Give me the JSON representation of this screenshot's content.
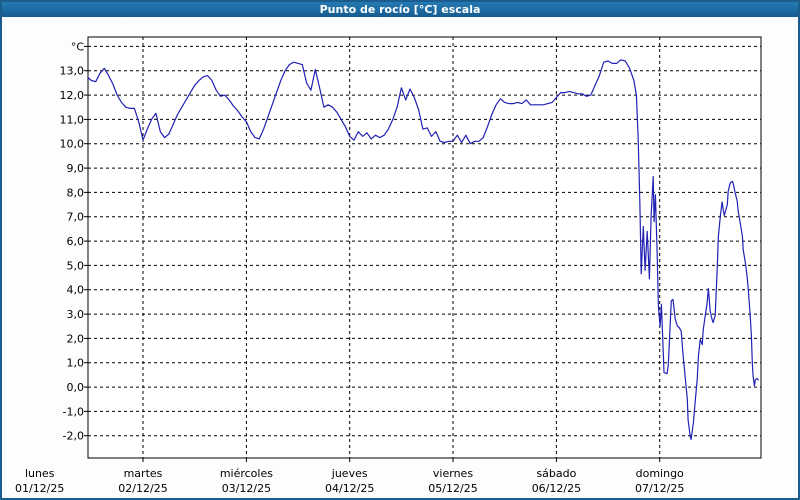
{
  "window": {
    "title": "Punto de rocío [°C] escala"
  },
  "colors": {
    "titlebar_blue": "#1d6ba4",
    "frame_blue": "#1b5c8e",
    "page_bg": "#fbfdfe",
    "plot_bg": "#ffffff",
    "grid_black": "#000000",
    "series_blue": "#2121b5",
    "title_text": "#ffffff",
    "axis_text": "#000000"
  },
  "chart_data": {
    "type": "line",
    "title": "Punto de rocío [°C] escala",
    "x_unit": "hours since lunes 01/12/25 00:00",
    "y_unit": "°C",
    "y_unit_label": "°C",
    "grid": true,
    "legend": "none",
    "ylim_visible": [
      -2.9,
      14.4
    ],
    "y_gridline_values": [
      14,
      13,
      12,
      11,
      10,
      9,
      8,
      7,
      6,
      5,
      4,
      3,
      2,
      1,
      0,
      -1,
      -2
    ],
    "y_ticks": [
      {
        "value": 13,
        "label": "13,0"
      },
      {
        "value": 12,
        "label": "12,0"
      },
      {
        "value": 11,
        "label": "11,0"
      },
      {
        "value": 10,
        "label": "10,0"
      },
      {
        "value": 9,
        "label": "9,0"
      },
      {
        "value": 8,
        "label": "8,0"
      },
      {
        "value": 7,
        "label": "7,0"
      },
      {
        "value": 6,
        "label": "6,0"
      },
      {
        "value": 5,
        "label": "5,0"
      },
      {
        "value": 4,
        "label": "4,0"
      },
      {
        "value": 3,
        "label": "3,0"
      },
      {
        "value": 2,
        "label": "2,0"
      },
      {
        "value": 1,
        "label": "1,0"
      },
      {
        "value": 0,
        "label": "0,0"
      },
      {
        "value": -1,
        "label": "-1,0"
      },
      {
        "value": -2,
        "label": "-2,0"
      }
    ],
    "x_gridline_days": [
      1,
      2,
      3,
      4,
      5,
      6
    ],
    "x_days": [
      {
        "name": "lunes",
        "date": "01/12/25"
      },
      {
        "name": "martes",
        "date": "02/12/25"
      },
      {
        "name": "miércoles",
        "date": "03/12/25"
      },
      {
        "name": "jueves",
        "date": "04/12/25"
      },
      {
        "name": "viernes",
        "date": "05/12/25"
      },
      {
        "name": "sábado",
        "date": "06/12/25"
      },
      {
        "name": "domingo",
        "date": "07/12/25"
      }
    ],
    "series": [
      {
        "name": "Punto de rocío",
        "color": "#2121b5",
        "points": [
          [
            11,
            12.75
          ],
          [
            12,
            12.6
          ],
          [
            13,
            12.55
          ],
          [
            14,
            12.9
          ],
          [
            15,
            13.1
          ],
          [
            16,
            12.8
          ],
          [
            17,
            12.45
          ],
          [
            18,
            12.0
          ],
          [
            19,
            11.7
          ],
          [
            20,
            11.5
          ],
          [
            21,
            11.45
          ],
          [
            22,
            11.45
          ],
          [
            23,
            10.9
          ],
          [
            24,
            10.15
          ],
          [
            25,
            10.6
          ],
          [
            26,
            11.0
          ],
          [
            27,
            11.25
          ],
          [
            28,
            10.5
          ],
          [
            29,
            10.25
          ],
          [
            30,
            10.4
          ],
          [
            31,
            10.8
          ],
          [
            32,
            11.2
          ],
          [
            33,
            11.5
          ],
          [
            34,
            11.8
          ],
          [
            35,
            12.1
          ],
          [
            36,
            12.4
          ],
          [
            37,
            12.6
          ],
          [
            38,
            12.75
          ],
          [
            39,
            12.8
          ],
          [
            40,
            12.6
          ],
          [
            41,
            12.2
          ],
          [
            42,
            11.95
          ],
          [
            43,
            12.0
          ],
          [
            44,
            11.8
          ],
          [
            45,
            11.55
          ],
          [
            46,
            11.35
          ],
          [
            47,
            11.1
          ],
          [
            48,
            10.9
          ],
          [
            49,
            10.5
          ],
          [
            50,
            10.25
          ],
          [
            51,
            10.2
          ],
          [
            52,
            10.6
          ],
          [
            53,
            11.1
          ],
          [
            54,
            11.6
          ],
          [
            55,
            12.1
          ],
          [
            56,
            12.6
          ],
          [
            57,
            13.0
          ],
          [
            58,
            13.25
          ],
          [
            59,
            13.35
          ],
          [
            60,
            13.3
          ],
          [
            61,
            13.25
          ],
          [
            62,
            12.5
          ],
          [
            63,
            12.2
          ],
          [
            64,
            13.05
          ],
          [
            65,
            12.3
          ],
          [
            66,
            11.5
          ],
          [
            67,
            11.6
          ],
          [
            68,
            11.5
          ],
          [
            69,
            11.3
          ],
          [
            70,
            11.0
          ],
          [
            71,
            10.7
          ],
          [
            72,
            10.3
          ],
          [
            73,
            10.15
          ],
          [
            74,
            10.5
          ],
          [
            75,
            10.3
          ],
          [
            76,
            10.45
          ],
          [
            77,
            10.2
          ],
          [
            78,
            10.35
          ],
          [
            79,
            10.25
          ],
          [
            80,
            10.35
          ],
          [
            81,
            10.6
          ],
          [
            82,
            11.0
          ],
          [
            83,
            11.5
          ],
          [
            84,
            12.3
          ],
          [
            85,
            11.8
          ],
          [
            86,
            12.25
          ],
          [
            87,
            11.9
          ],
          [
            88,
            11.4
          ],
          [
            89,
            10.6
          ],
          [
            90,
            10.65
          ],
          [
            91,
            10.3
          ],
          [
            92,
            10.5
          ],
          [
            93,
            10.1
          ],
          [
            94,
            10.05
          ],
          [
            95,
            10.1
          ],
          [
            96,
            10.1
          ],
          [
            97,
            10.35
          ],
          [
            98,
            10.05
          ],
          [
            99,
            10.35
          ],
          [
            100,
            10.0
          ],
          [
            101,
            10.1
          ],
          [
            102,
            10.1
          ],
          [
            103,
            10.25
          ],
          [
            104,
            10.7
          ],
          [
            105,
            11.2
          ],
          [
            106,
            11.6
          ],
          [
            107,
            11.85
          ],
          [
            108,
            11.7
          ],
          [
            109,
            11.65
          ],
          [
            110,
            11.65
          ],
          [
            111,
            11.7
          ],
          [
            112,
            11.65
          ],
          [
            113,
            11.8
          ],
          [
            114,
            11.6
          ],
          [
            115,
            11.6
          ],
          [
            116,
            11.6
          ],
          [
            117,
            11.6
          ],
          [
            118,
            11.65
          ],
          [
            119,
            11.7
          ],
          [
            120,
            11.9
          ],
          [
            121,
            12.1
          ],
          [
            122,
            12.1
          ],
          [
            123,
            12.15
          ],
          [
            124,
            12.1
          ],
          [
            125,
            12.05
          ],
          [
            126,
            12.05
          ],
          [
            127,
            11.95
          ],
          [
            128,
            12.0
          ],
          [
            129,
            12.4
          ],
          [
            130,
            12.8
          ],
          [
            131,
            13.35
          ],
          [
            132,
            13.4
          ],
          [
            133,
            13.3
          ],
          [
            134,
            13.3
          ],
          [
            135,
            13.45
          ],
          [
            136,
            13.4
          ],
          [
            137,
            13.1
          ],
          [
            138,
            12.6
          ],
          [
            138.6,
            12.0
          ],
          [
            139,
            10.2
          ],
          [
            139.4,
            7.5
          ],
          [
            139.7,
            4.65
          ],
          [
            140.2,
            6.6
          ],
          [
            140.6,
            4.8
          ],
          [
            141.1,
            6.4
          ],
          [
            141.6,
            4.45
          ],
          [
            142,
            7.0
          ],
          [
            142.5,
            8.65
          ],
          [
            142.7,
            6.8
          ],
          [
            143,
            7.9
          ],
          [
            143.4,
            5.6
          ],
          [
            143.7,
            3.3
          ],
          [
            144.1,
            2.5
          ],
          [
            144.4,
            3.4
          ],
          [
            144.8,
            1.6
          ],
          [
            145,
            0.6
          ],
          [
            145.7,
            0.55
          ],
          [
            146,
            0.9
          ],
          [
            146.4,
            2.4
          ],
          [
            146.7,
            3.55
          ],
          [
            147.1,
            3.6
          ],
          [
            147.6,
            2.8
          ],
          [
            148.1,
            2.5
          ],
          [
            148.5,
            2.45
          ],
          [
            149,
            2.3
          ],
          [
            149.4,
            1.4
          ],
          [
            149.9,
            0.45
          ],
          [
            150.4,
            -0.5
          ],
          [
            150.6,
            -1.35
          ],
          [
            151.1,
            -2.05
          ],
          [
            151.3,
            -2.15
          ],
          [
            151.8,
            -1.5
          ],
          [
            152.3,
            -0.5
          ],
          [
            152.7,
            0.3
          ],
          [
            153,
            1.25
          ],
          [
            153.4,
            1.95
          ],
          [
            153.9,
            1.75
          ],
          [
            154.1,
            2.35
          ],
          [
            154.6,
            2.95
          ],
          [
            155,
            3.45
          ],
          [
            155.3,
            4.05
          ],
          [
            155.7,
            3.15
          ],
          [
            156.2,
            2.75
          ],
          [
            156.4,
            2.65
          ],
          [
            156.9,
            2.95
          ],
          [
            157.4,
            5.05
          ],
          [
            157.6,
            6.15
          ],
          [
            158.1,
            7.05
          ],
          [
            158.5,
            7.6
          ],
          [
            158.8,
            7.25
          ],
          [
            159,
            7.05
          ],
          [
            159.7,
            7.5
          ],
          [
            159.9,
            8.05
          ],
          [
            160.4,
            8.4
          ],
          [
            160.9,
            8.45
          ],
          [
            161.1,
            8.35
          ],
          [
            161.5,
            8.0
          ],
          [
            162,
            7.65
          ],
          [
            162.2,
            7.25
          ],
          [
            162.7,
            6.75
          ],
          [
            163.2,
            6.2
          ],
          [
            163.4,
            5.65
          ],
          [
            163.9,
            5.1
          ],
          [
            164.3,
            4.55
          ],
          [
            164.6,
            3.95
          ],
          [
            165,
            3.0
          ],
          [
            165.3,
            2.1
          ],
          [
            165.5,
            1.0
          ],
          [
            165.7,
            0.45
          ],
          [
            166,
            0.05
          ],
          [
            166.2,
            0.3
          ],
          [
            166.6,
            0.35
          ],
          [
            166.9,
            0.3
          ]
        ]
      }
    ]
  }
}
